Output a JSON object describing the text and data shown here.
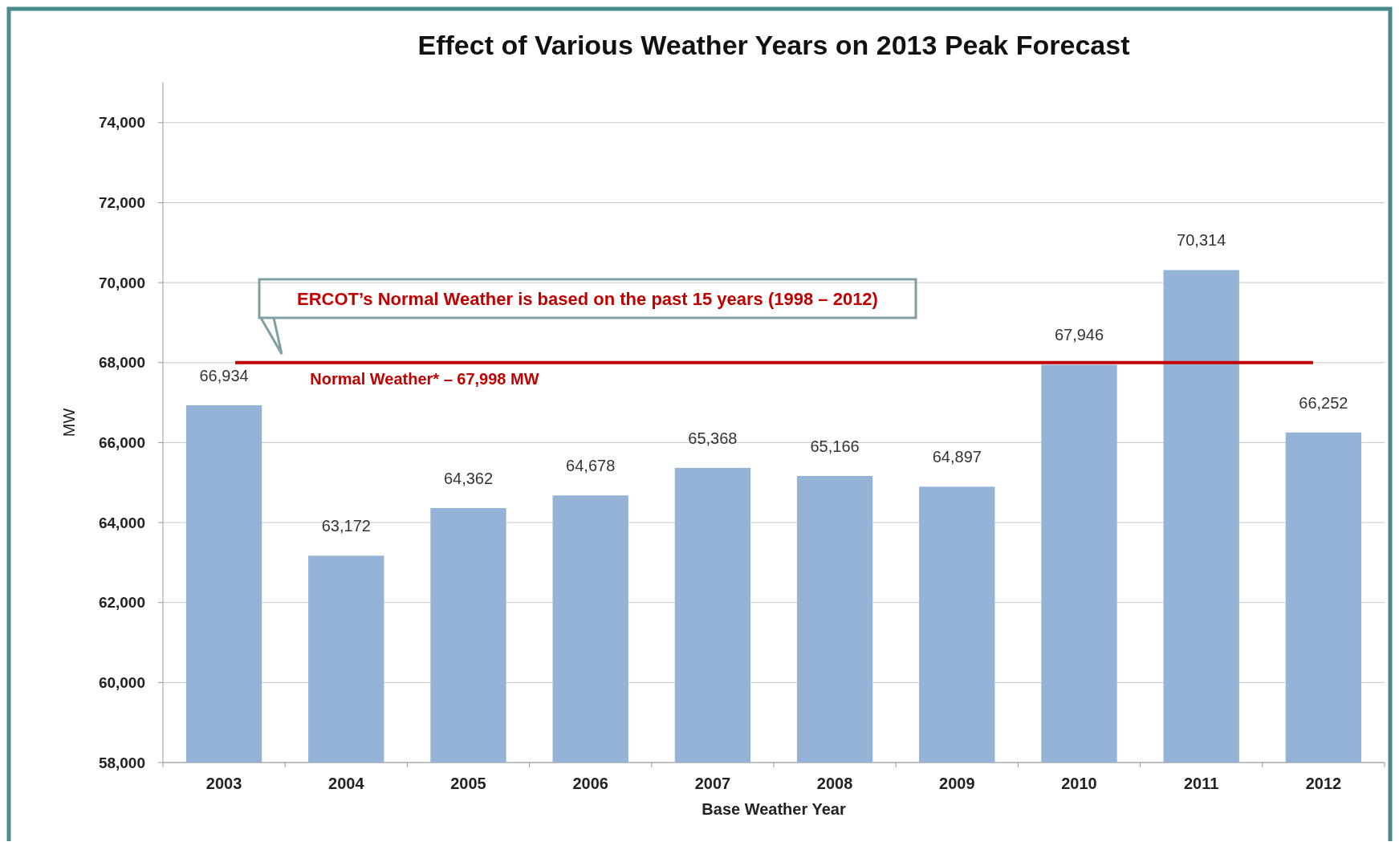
{
  "chart_data": {
    "type": "bar",
    "title": "Effect of Various Weather Years on 2013 Peak Forecast",
    "xlabel": "Base Weather Year",
    "ylabel": "MW",
    "categories": [
      "2003",
      "2004",
      "2005",
      "2006",
      "2007",
      "2008",
      "2009",
      "2010",
      "2011",
      "2012"
    ],
    "values": [
      66934,
      63172,
      64362,
      64678,
      65368,
      65166,
      64897,
      67946,
      70314,
      66252
    ],
    "color": "#95b3d7",
    "ylim": [
      58000,
      75000
    ],
    "yticks": [
      {
        "value": 58000,
        "label": "58,000"
      },
      {
        "value": 60000,
        "label": "60,000"
      },
      {
        "value": 62000,
        "label": "62,000"
      },
      {
        "value": 64000,
        "label": "64,000"
      },
      {
        "value": 66000,
        "label": "66,000"
      },
      {
        "value": 68000,
        "label": "68,000"
      },
      {
        "value": 70000,
        "label": "70,000"
      },
      {
        "value": 72000,
        "label": "72,000"
      },
      {
        "value": 74000,
        "label": "74,000"
      }
    ],
    "value_labels": [
      "66,934",
      "63,172",
      "64,362",
      "64,678",
      "65,368",
      "65,166",
      "64,897",
      "67,946",
      "70,314",
      "66,252"
    ],
    "grid": "y",
    "ref_lines": [
      {
        "axis": "y",
        "value": 67998,
        "label": "Normal Weather* – 67,998 MW",
        "color": "#c00000"
      }
    ],
    "annotations": [
      "ERCOT’s Normal Weather is based on the past 15 years (1998 – 2012)"
    ]
  }
}
